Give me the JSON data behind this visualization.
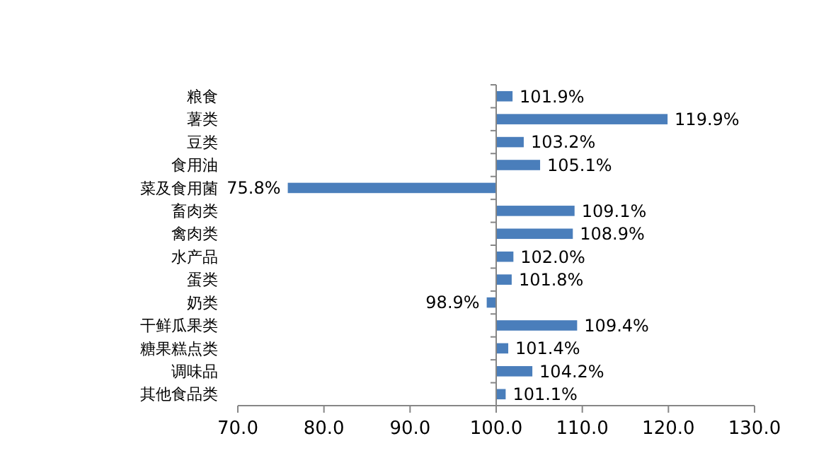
{
  "chart_data": {
    "type": "bar",
    "orientation": "horizontal",
    "categories": [
      "粮食",
      "薯类",
      "豆类",
      "食用油",
      "菜及食用菌",
      "畜肉类",
      "禽肉类",
      "水产品",
      "蛋类",
      "奶类",
      "干鲜瓜果类",
      "糖果糕点类",
      "调味品",
      "其他食品类"
    ],
    "base": [
      100,
      100,
      100,
      100,
      100,
      100,
      100,
      100,
      100,
      100,
      100,
      100,
      100,
      100
    ],
    "xlim": [
      70,
      130
    ],
    "xticks": [
      {
        "value": 70,
        "label": "70.0"
      },
      {
        "value": 80,
        "label": "80.0"
      },
      {
        "value": 90,
        "label": "90.0"
      },
      {
        "value": 100,
        "label": "100.0"
      },
      {
        "value": 110,
        "label": "110.0"
      },
      {
        "value": 120,
        "label": "120.0"
      },
      {
        "value": 130,
        "label": "130.0"
      }
    ],
    "values": [
      1.9,
      19.9,
      3.2,
      5.1,
      -24.2,
      9.1,
      8.9,
      2.0,
      1.8,
      -1.1,
      9.4,
      1.4,
      4.2,
      1.1
    ],
    "value_labels": [
      "101.9%",
      "119.9%",
      "103.2%",
      "105.1%",
      "75.8%",
      "109.1%",
      "108.9%",
      "102.0%",
      "101.8%",
      "98.9%",
      "109.4%",
      "101.4%",
      "104.2%",
      "101.1%"
    ],
    "color": "#4a7ebb"
  }
}
